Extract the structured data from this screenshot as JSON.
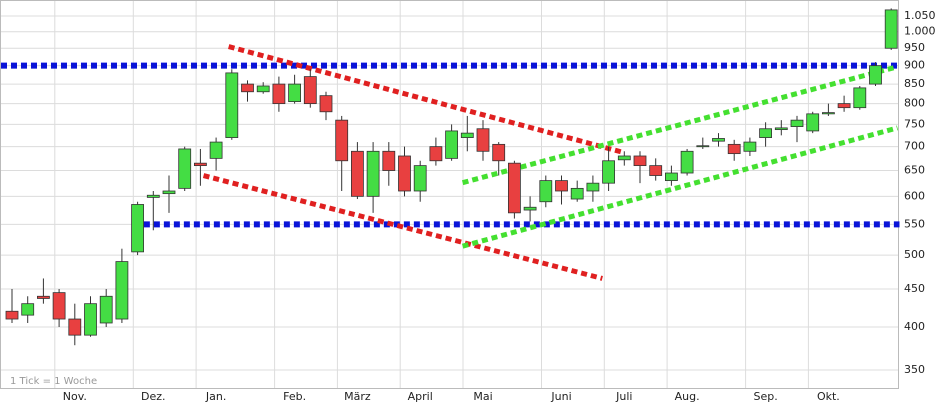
{
  "chart_data": {
    "type": "candlestick",
    "annotation": "1 Tick = 1 Woche",
    "log_scale": true,
    "grid": true,
    "up_color": "#44dd44",
    "down_color": "#e84040",
    "categories": [
      null,
      null,
      null,
      null,
      "Nov.",
      null,
      null,
      null,
      null,
      "Dez.",
      null,
      null,
      null,
      "Jan.",
      null,
      null,
      null,
      null,
      "Feb.",
      null,
      null,
      null,
      "März",
      null,
      null,
      null,
      "April",
      null,
      null,
      null,
      "Mai",
      null,
      null,
      null,
      null,
      "Juni",
      null,
      null,
      null,
      "Juli",
      null,
      null,
      null,
      "Aug.",
      null,
      null,
      null,
      null,
      "Sep.",
      null,
      null,
      null,
      "Okt.",
      null,
      null,
      null,
      null
    ],
    "open": [
      420,
      415,
      440,
      445,
      410,
      390,
      405,
      410,
      505,
      598,
      605,
      615,
      665,
      675,
      720,
      850,
      830,
      850,
      805,
      870,
      820,
      760,
      690,
      600,
      690,
      680,
      610,
      700,
      675,
      720,
      740,
      705,
      665,
      575,
      590,
      630,
      595,
      610,
      625,
      672,
      680,
      660,
      630,
      645,
      700,
      712,
      705,
      690,
      720,
      738,
      745,
      735,
      775,
      800,
      790,
      850,
      950
    ],
    "high": [
      450,
      440,
      465,
      450,
      430,
      440,
      450,
      510,
      590,
      610,
      640,
      700,
      695,
      720,
      890,
      860,
      855,
      870,
      875,
      890,
      830,
      770,
      710,
      710,
      710,
      700,
      670,
      720,
      750,
      770,
      760,
      710,
      670,
      600,
      640,
      640,
      630,
      640,
      700,
      690,
      690,
      675,
      660,
      695,
      720,
      730,
      715,
      720,
      755,
      760,
      770,
      780,
      800,
      820,
      845,
      910,
      1075
    ],
    "low": [
      405,
      405,
      430,
      400,
      378,
      388,
      400,
      405,
      500,
      540,
      570,
      610,
      620,
      650,
      715,
      805,
      825,
      780,
      800,
      790,
      760,
      610,
      595,
      570,
      620,
      600,
      590,
      660,
      670,
      690,
      670,
      640,
      560,
      555,
      580,
      585,
      590,
      590,
      610,
      660,
      625,
      630,
      620,
      640,
      695,
      700,
      670,
      680,
      700,
      725,
      710,
      730,
      770,
      780,
      785,
      845,
      945
    ],
    "close": [
      410,
      430,
      437,
      410,
      390,
      430,
      440,
      490,
      585,
      602,
      610,
      695,
      660,
      710,
      880,
      830,
      845,
      800,
      850,
      800,
      780,
      670,
      600,
      690,
      650,
      610,
      660,
      670,
      735,
      730,
      690,
      670,
      570,
      580,
      630,
      610,
      615,
      625,
      670,
      680,
      660,
      640,
      645,
      690,
      702,
      718,
      685,
      710,
      740,
      742,
      760,
      775,
      778,
      790,
      840,
      900,
      1070
    ],
    "ylim": [
      331,
      1100
    ],
    "yticks": [
      350,
      400,
      450,
      500,
      550,
      600,
      650,
      700,
      750,
      800,
      850,
      900,
      950,
      {
        "value": 1000,
        "label": "1.000"
      },
      {
        "value": 1050,
        "label": "1.050"
      }
    ],
    "support_lines": [
      {
        "color": "#0a14d8",
        "x": [
          0,
          56.4
        ],
        "value": 900
      },
      {
        "color": "#0a14d8",
        "x": [
          9.1,
          56.4
        ],
        "value": 550
      }
    ],
    "trend_lines": [
      {
        "color": "#e02020",
        "x": [
          13.8,
          39
        ],
        "values": [
          955,
          687
        ]
      },
      {
        "color": "#e02020",
        "x": [
          12.2,
          37.6
        ],
        "values": [
          640,
          465
        ]
      },
      {
        "color": "#44e030",
        "x": [
          28.7,
          56.4
        ],
        "values": [
          626,
          897
        ]
      },
      {
        "color": "#44e030",
        "x": [
          28.7,
          56.4
        ],
        "values": [
          514,
          742
        ]
      }
    ]
  }
}
